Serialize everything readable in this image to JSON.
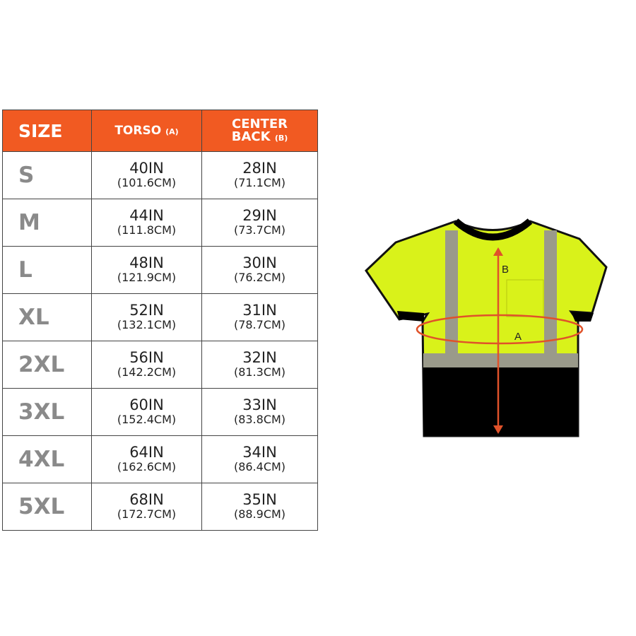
{
  "table": {
    "headers": {
      "size": "SIZE",
      "torso": "TORSO",
      "torso_tag": "(A)",
      "center_back_1": "CENTER",
      "center_back_2": "BACK",
      "center_back_tag": "(B)"
    },
    "rows": [
      {
        "size": "S",
        "torso_in": "40IN",
        "torso_cm": "(101.6CM)",
        "back_in": "28IN",
        "back_cm": "(71.1CM)"
      },
      {
        "size": "M",
        "torso_in": "44IN",
        "torso_cm": "(111.8CM)",
        "back_in": "29IN",
        "back_cm": "(73.7CM)"
      },
      {
        "size": "L",
        "torso_in": "48IN",
        "torso_cm": "(121.9CM)",
        "back_in": "30IN",
        "back_cm": "(76.2CM)"
      },
      {
        "size": "XL",
        "torso_in": "52IN",
        "torso_cm": "(132.1CM)",
        "back_in": "31IN",
        "back_cm": "(78.7CM)"
      },
      {
        "size": "2XL",
        "torso_in": "56IN",
        "torso_cm": "(142.2CM)",
        "back_in": "32IN",
        "back_cm": "(81.3CM)"
      },
      {
        "size": "3XL",
        "torso_in": "60IN",
        "torso_cm": "(152.4CM)",
        "back_in": "33IN",
        "back_cm": "(83.8CM)"
      },
      {
        "size": "4XL",
        "torso_in": "64IN",
        "torso_cm": "(162.6CM)",
        "back_in": "34IN",
        "back_cm": "(86.4CM)"
      },
      {
        "size": "5XL",
        "torso_in": "68IN",
        "torso_cm": "(172.7CM)",
        "back_in": "35IN",
        "back_cm": "(88.9CM)"
      }
    ]
  },
  "diagram": {
    "label_a": "A",
    "label_b": "B"
  },
  "colors": {
    "header": "#f15a22",
    "size_text": "#8a8a8a",
    "shirt": "#d9f21a",
    "shirt_bottom": "#000000",
    "reflective": "#9a9a8a",
    "arrows": "#e0522a"
  }
}
